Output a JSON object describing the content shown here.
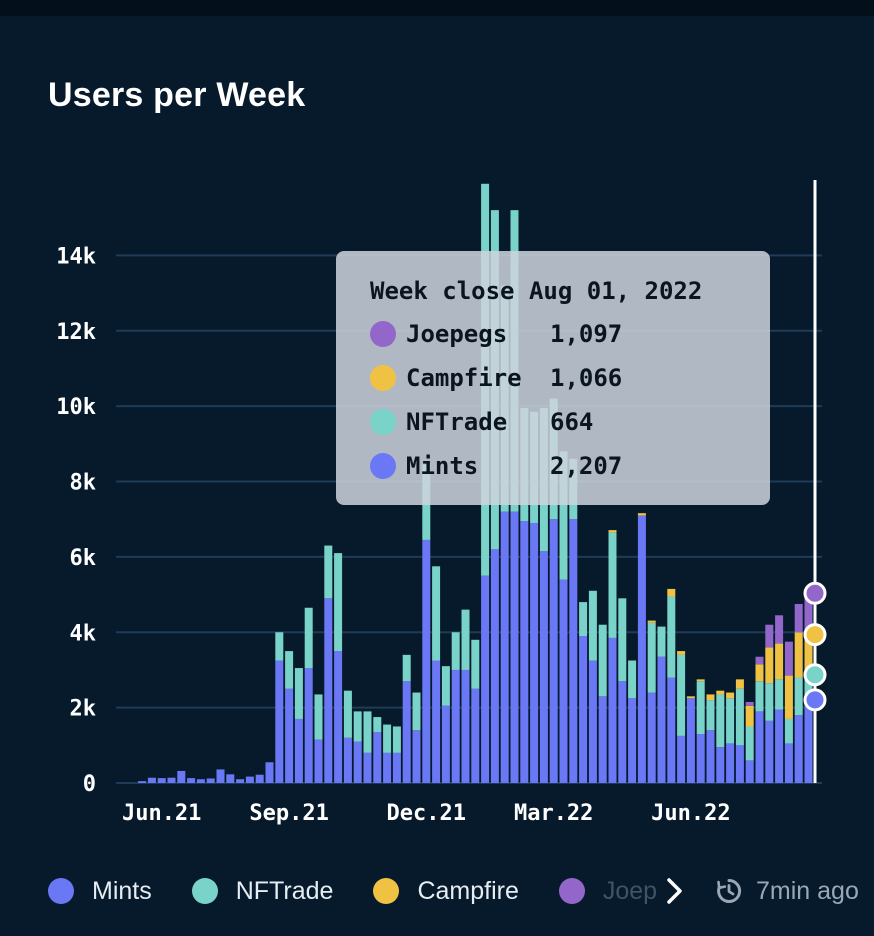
{
  "card": {
    "title": "Users per Week"
  },
  "tooltip": {
    "title": "Week close Aug 01, 2022",
    "rows": [
      {
        "name": "Joepegs",
        "value": "1,097",
        "color": "#9366c9"
      },
      {
        "name": "Campfire",
        "value": "1,066",
        "color": "#f0c244"
      },
      {
        "name": "NFTrade",
        "value": "664",
        "color": "#7ad3c8"
      },
      {
        "name": "Mints",
        "value": "2,207",
        "color": "#6a78f5"
      }
    ]
  },
  "legend": {
    "items": [
      {
        "name": "Mints",
        "color": "#6a78f5"
      },
      {
        "name": "NFTrade",
        "color": "#7ad3c8"
      },
      {
        "name": "Campfire",
        "color": "#f0c244"
      },
      {
        "name": "Joep",
        "color": "#9366c9"
      }
    ],
    "more_icon": "chevron-right-icon",
    "updated_icon": "clock-icon",
    "updated_text": "7min ago"
  },
  "chart_data": {
    "type": "bar",
    "stacked": true,
    "title": "Users per Week",
    "x_tick_labels": [
      "Jun.21",
      "Sep.21",
      "Dec.21",
      "Mar.22",
      "Jun.22"
    ],
    "y_tick_labels": [
      "0",
      "2k",
      "4k",
      "6k",
      "8k",
      "10k",
      "12k",
      "14k"
    ],
    "ylim": [
      0,
      16000
    ],
    "grid": true,
    "legend_position": "bottom",
    "series": [
      {
        "name": "Mints",
        "color": "#6a78f5",
        "values": [
          0,
          0,
          50,
          140,
          130,
          140,
          320,
          130,
          100,
          120,
          360,
          230,
          100,
          170,
          220,
          550,
          3250,
          2500,
          1700,
          3050,
          1150,
          4900,
          3500,
          1200,
          1100,
          800,
          1350,
          800,
          800,
          2700,
          1400,
          6450,
          3250,
          2050,
          3000,
          3000,
          2500,
          5500,
          6200,
          7200,
          7200,
          6950,
          6900,
          6150,
          7000,
          5400,
          7000,
          3900,
          3250,
          2300,
          3850,
          2700,
          2250,
          7100,
          2400,
          3350,
          2800,
          1250,
          2250,
          1300,
          1400,
          950,
          1050,
          1000,
          600,
          1900,
          1650,
          1950,
          1050,
          1800,
          2207
        ]
      },
      {
        "name": "NFTrade",
        "color": "#7ad3c8",
        "values": [
          0,
          0,
          0,
          0,
          0,
          0,
          0,
          0,
          0,
          0,
          0,
          0,
          0,
          0,
          0,
          0,
          750,
          1000,
          1350,
          1600,
          1200,
          1400,
          2600,
          1250,
          800,
          1100,
          400,
          750,
          700,
          700,
          1000,
          2000,
          2500,
          1050,
          1000,
          1600,
          1300,
          10400,
          9000,
          6000,
          8000,
          3000,
          2950,
          3800,
          3200,
          3400,
          1600,
          900,
          1850,
          1900,
          2800,
          2200,
          1000,
          0,
          1850,
          800,
          2150,
          2150,
          0,
          1400,
          800,
          1400,
          1200,
          1500,
          900,
          800,
          1000,
          800,
          650,
          1000,
          664
        ]
      },
      {
        "name": "Campfire",
        "color": "#f0c244",
        "values": [
          0,
          0,
          0,
          0,
          0,
          0,
          0,
          0,
          0,
          0,
          0,
          0,
          0,
          0,
          0,
          0,
          0,
          0,
          0,
          0,
          0,
          0,
          0,
          0,
          0,
          0,
          0,
          0,
          0,
          0,
          0,
          0,
          0,
          0,
          0,
          0,
          0,
          0,
          0,
          0,
          0,
          0,
          0,
          0,
          0,
          0,
          0,
          0,
          0,
          0,
          60,
          0,
          0,
          60,
          60,
          0,
          200,
          100,
          50,
          50,
          150,
          100,
          150,
          250,
          550,
          450,
          950,
          950,
          1150,
          1200,
          1066
        ]
      },
      {
        "name": "Joepegs",
        "color": "#9366c9",
        "values": [
          0,
          0,
          0,
          0,
          0,
          0,
          0,
          0,
          0,
          0,
          0,
          0,
          0,
          0,
          0,
          0,
          0,
          0,
          0,
          0,
          0,
          0,
          0,
          0,
          0,
          0,
          0,
          0,
          0,
          0,
          0,
          0,
          0,
          0,
          0,
          0,
          0,
          0,
          0,
          0,
          0,
          0,
          0,
          0,
          0,
          0,
          0,
          0,
          0,
          0,
          0,
          0,
          0,
          0,
          0,
          0,
          0,
          0,
          0,
          0,
          0,
          0,
          0,
          0,
          100,
          200,
          600,
          750,
          900,
          750,
          1097
        ]
      }
    ]
  }
}
